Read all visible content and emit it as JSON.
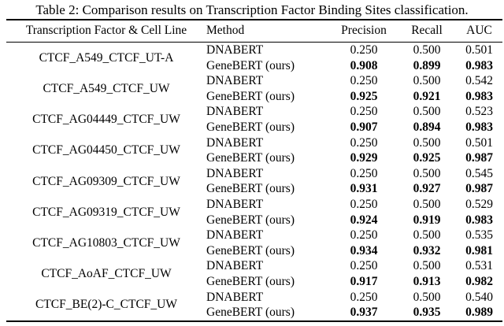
{
  "title": "Table 2: Comparison results on Transcription Factor Binding Sites classification.",
  "table": {
    "headers": {
      "cell_line": "Transcription Factor & Cell Line",
      "method": "Method",
      "precision": "Precision",
      "recall": "Recall",
      "auc": "AUC"
    },
    "groups": [
      {
        "name": "CTCF_A549_CTCF_UT-A",
        "rows": [
          {
            "method": "DNABERT",
            "precision": "0.250",
            "recall": "0.500",
            "auc": "0.501",
            "bold": false
          },
          {
            "method": "GeneBERT (ours)",
            "precision": "0.908",
            "recall": "0.899",
            "auc": "0.983",
            "bold": true
          }
        ]
      },
      {
        "name": "CTCF_A549_CTCF_UW",
        "rows": [
          {
            "method": "DNABERT",
            "precision": "0.250",
            "recall": "0.500",
            "auc": "0.542",
            "bold": false
          },
          {
            "method": "GeneBERT (ours)",
            "precision": "0.925",
            "recall": "0.921",
            "auc": "0.983",
            "bold": true
          }
        ]
      },
      {
        "name": "CTCF_AG04449_CTCF_UW",
        "rows": [
          {
            "method": "DNABERT",
            "precision": "0.250",
            "recall": "0.500",
            "auc": "0.523",
            "bold": false
          },
          {
            "method": "GeneBERT (ours)",
            "precision": "0.907",
            "recall": "0.894",
            "auc": "0.983",
            "bold": true
          }
        ]
      },
      {
        "name": "CTCF_AG04450_CTCF_UW",
        "rows": [
          {
            "method": "DNABERT",
            "precision": "0.250",
            "recall": "0.500",
            "auc": "0.501",
            "bold": false
          },
          {
            "method": "GeneBERT (ours)",
            "precision": "0.929",
            "recall": "0.925",
            "auc": "0.987",
            "bold": true
          }
        ]
      },
      {
        "name": "CTCF_AG09309_CTCF_UW",
        "rows": [
          {
            "method": "DNABERT",
            "precision": "0.250",
            "recall": "0.500",
            "auc": "0.545",
            "bold": false
          },
          {
            "method": "GeneBERT (ours)",
            "precision": "0.931",
            "recall": "0.927",
            "auc": "0.987",
            "bold": true
          }
        ]
      },
      {
        "name": "CTCF_AG09319_CTCF_UW",
        "rows": [
          {
            "method": "DNABERT",
            "precision": "0.250",
            "recall": "0.500",
            "auc": "0.529",
            "bold": false
          },
          {
            "method": "GeneBERT (ours)",
            "precision": "0.924",
            "recall": "0.919",
            "auc": "0.983",
            "bold": true
          }
        ]
      },
      {
        "name": "CTCF_AG10803_CTCF_UW",
        "rows": [
          {
            "method": "DNABERT",
            "precision": "0.250",
            "recall": "0.500",
            "auc": "0.535",
            "bold": false
          },
          {
            "method": "GeneBERT (ours)",
            "precision": "0.934",
            "recall": "0.932",
            "auc": "0.981",
            "bold": true
          }
        ]
      },
      {
        "name": "CTCF_AoAF_CTCF_UW",
        "rows": [
          {
            "method": "DNABERT",
            "precision": "0.250",
            "recall": "0.500",
            "auc": "0.531",
            "bold": false
          },
          {
            "method": "GeneBERT (ours)",
            "precision": "0.917",
            "recall": "0.913",
            "auc": "0.982",
            "bold": true
          }
        ]
      },
      {
        "name": "CTCF_BE(2)-C_CTCF_UW",
        "rows": [
          {
            "method": "DNABERT",
            "precision": "0.250",
            "recall": "0.500",
            "auc": "0.540",
            "bold": false
          },
          {
            "method": "GeneBERT (ours)",
            "precision": "0.937",
            "recall": "0.935",
            "auc": "0.989",
            "bold": true
          }
        ]
      }
    ]
  }
}
